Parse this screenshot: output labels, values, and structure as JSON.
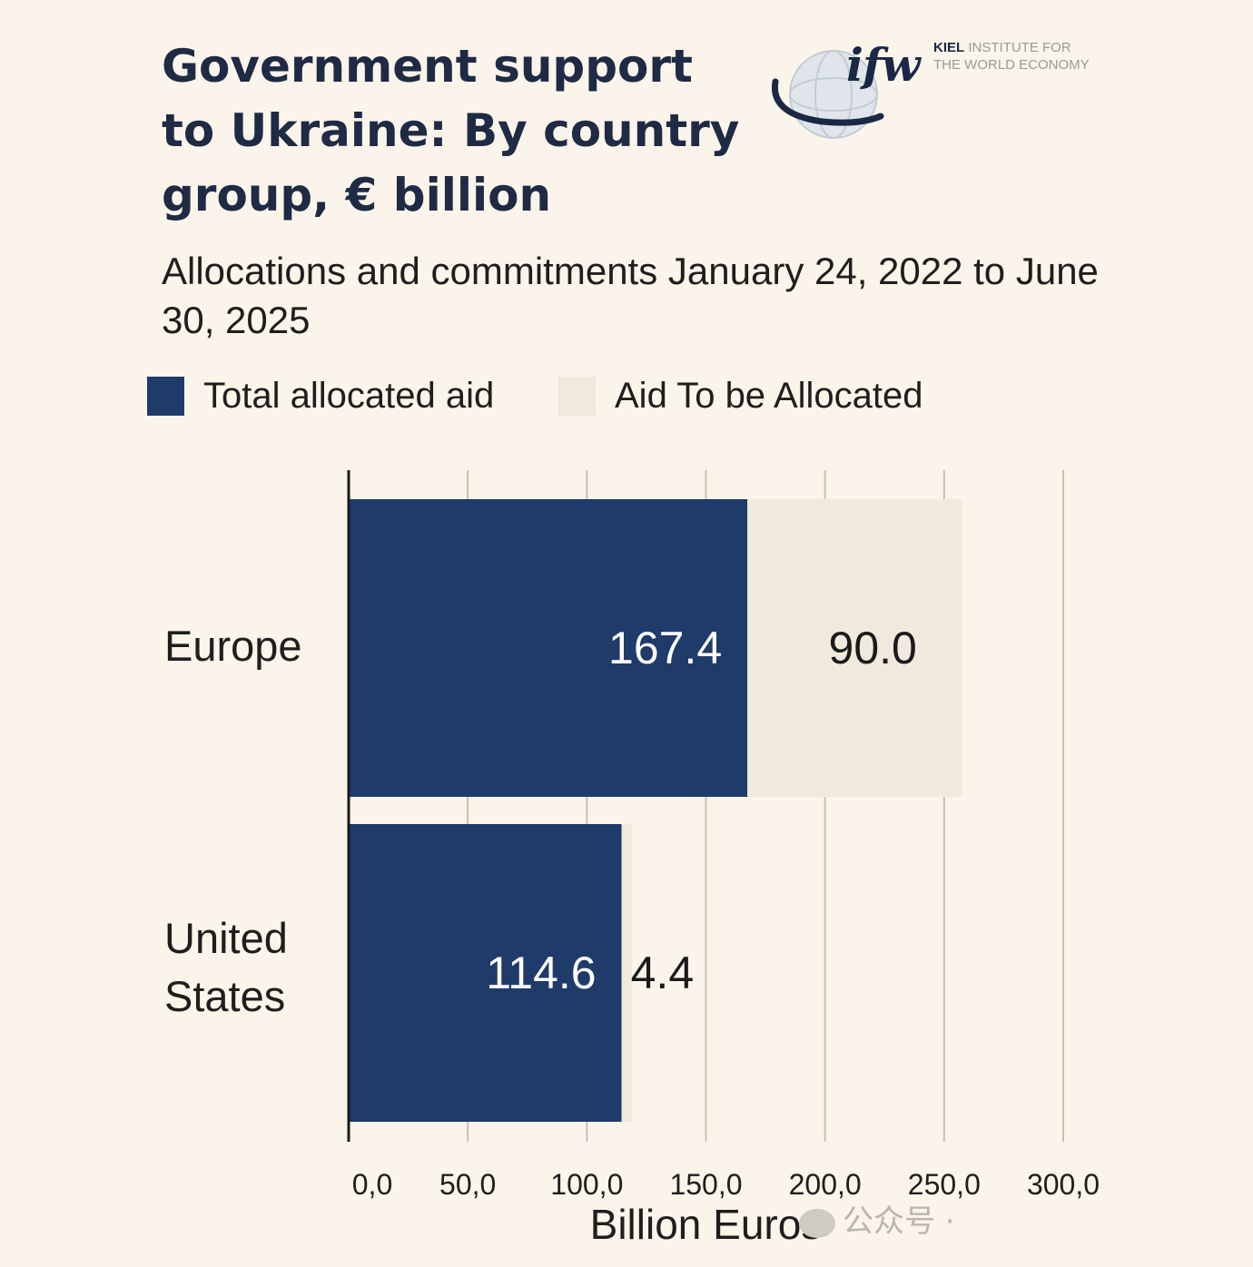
{
  "header": {
    "title": "Government support to Ukraine: By country group, € billion",
    "subtitle": "Allocations and commitments January 24, 2022 to June 30, 2025"
  },
  "logo": {
    "mark": "ifw",
    "line1_bold": "KIEL",
    "line1_rest": "INSTITUTE FOR",
    "line2": "THE WORLD ECONOMY"
  },
  "watermark": {
    "text": "公众号 ·"
  },
  "colors": {
    "allocated": "#1f3b6a",
    "to_be_allocated": "#f1e9dd",
    "gridline": "#c9bfb3",
    "axis": "#1a1a1a",
    "background": "#fbf4ea"
  },
  "chart_data": {
    "type": "bar",
    "orientation": "horizontal",
    "stacked": true,
    "title": "Government support to Ukraine: By country group, € billion",
    "subtitle": "Allocations and commitments January 24, 2022 to June 30, 2025",
    "categories": [
      "Europe",
      "United\nStates"
    ],
    "series": [
      {
        "name": "Total allocated aid",
        "values": [
          167.4,
          114.6
        ],
        "labels": [
          "167.4",
          "114.6"
        ]
      },
      {
        "name": "Aid To be Allocated",
        "values": [
          90.0,
          4.4
        ],
        "labels": [
          "90.0",
          "4.4"
        ]
      }
    ],
    "xlabel": "Billion Euros",
    "ylabel": "",
    "xlim": [
      0,
      300
    ],
    "xticks": [
      0,
      50,
      100,
      150,
      200,
      250,
      300
    ],
    "xtick_labels": [
      "0,0",
      "50,0",
      "100,0",
      "150,0",
      "200,0",
      "250,0",
      "300,0"
    ],
    "grid": true,
    "legend_position": "top-left"
  }
}
